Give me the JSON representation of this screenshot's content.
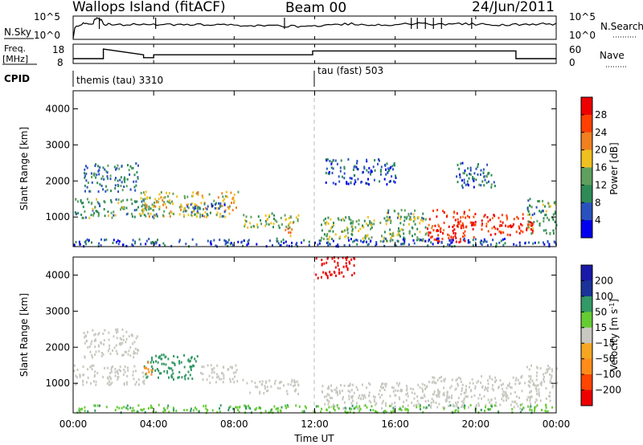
{
  "header": {
    "site": "Wallops Island (fitACF)",
    "beam": "Beam 00",
    "date": "24/Jun/2011"
  },
  "sky_panel": {
    "label": "N.Sky",
    "right_label": "N.Search",
    "y_ticks_left": [
      "10^5",
      "10^0"
    ],
    "y_ticks_right": [
      "10^5",
      "10^0"
    ]
  },
  "freq_panel": {
    "label_top": "Freq.",
    "label_bottom": "[MHz]",
    "y_ticks_left": [
      "18",
      "8"
    ],
    "right_label": "Nave",
    "y_ticks_right": [
      "60",
      "0"
    ]
  },
  "cpid_panel": {
    "label": "CPID",
    "programs": [
      {
        "name": "themis (tau)",
        "id": "3310",
        "start_hour": 0
      },
      {
        "name": "tau (fast)",
        "id": "503",
        "start_hour": 12
      }
    ]
  },
  "x_axis": {
    "label": "Time UT",
    "tick_labels": [
      "00:00",
      "04:00",
      "08:00",
      "12:00",
      "16:00",
      "20:00",
      "00:00"
    ],
    "tick_hours": [
      0,
      4,
      8,
      12,
      16,
      20,
      24
    ],
    "range_hours": [
      0,
      24
    ]
  },
  "colors": {
    "power_scale": [
      "#0000ee",
      "#2a52be",
      "#2e8b57",
      "#5fa05f",
      "#f0c020",
      "#f08020",
      "#ff4000",
      "#ee0000"
    ],
    "velocity_scale": [
      "#ee0000",
      "#ff4500",
      "#ff8c1a",
      "#f5a623",
      "#c8c8c0",
      "#66cc33",
      "#339966",
      "#1a3399",
      "#1a1aaa"
    ],
    "ground_scatter": "#c8c8c0",
    "line": "#000000"
  },
  "chart_data": [
    {
      "type": "line",
      "title": "N.Sky",
      "ylabel": "N.Sky",
      "y_scale": "log",
      "ylim": [
        1,
        100000
      ],
      "x_hours": [
        0,
        0.5,
        1,
        1.2,
        1.5,
        2,
        3,
        4,
        5,
        6,
        7,
        8,
        9,
        10,
        11,
        12,
        13,
        14,
        15,
        16,
        17,
        18,
        19,
        20,
        21,
        22,
        23,
        24
      ],
      "values": [
        0,
        2000,
        2600,
        30000,
        1800,
        1500,
        1500,
        1300,
        1500,
        1600,
        1400,
        900,
        800,
        700,
        600,
        800,
        1500,
        2000,
        1400,
        1700,
        2500,
        1600,
        2000,
        1800,
        1500,
        1400,
        2000,
        1800
      ],
      "spikes_hours": [
        1.3,
        4.1,
        10.5,
        16.8,
        17.1,
        17.5,
        17.9,
        18.3,
        19.8
      ]
    },
    {
      "type": "line",
      "title": "Freq.",
      "ylabel": "Freq. [MHz]",
      "ylim": [
        8,
        18
      ],
      "series": [
        {
          "name": "Freq.",
          "x_hours": [
            0,
            1.5,
            1.5,
            3.5,
            3.5,
            4.0,
            4.0,
            11.9,
            11.9,
            22.0,
            22.0,
            24
          ],
          "values": [
            10.5,
            10.5,
            15.5,
            12.5,
            11.0,
            11.0,
            12.5,
            12.5,
            14.5,
            14.5,
            10.5,
            10.5
          ]
        },
        {
          "name": "Nave",
          "x_hours": [
            0,
            24
          ],
          "values": [
            8,
            8
          ]
        }
      ]
    },
    {
      "type": "heatmap",
      "title": "Power",
      "ylabel": "Slant Range [km]",
      "xlabel": "",
      "ylim": [
        180,
        4500
      ],
      "y_ticks": [
        1000,
        2000,
        3000,
        4000
      ],
      "colorbar": {
        "label": "Power [dB]",
        "ticks": [
          4,
          8,
          12,
          16,
          20,
          24,
          28
        ],
        "range": [
          0,
          32
        ]
      },
      "blobs": [
        {
          "t0": 0.0,
          "t1": 4.2,
          "r0": 950,
          "r1": 1500,
          "value": 12
        },
        {
          "t0": 0.5,
          "t1": 3.2,
          "r0": 1700,
          "r1": 2500,
          "value": 9
        },
        {
          "t0": 3.3,
          "t1": 8.2,
          "r0": 1000,
          "r1": 1700,
          "value": 18
        },
        {
          "t0": 5.5,
          "t1": 7.5,
          "r0": 1000,
          "r1": 1400,
          "value": 8
        },
        {
          "t0": 8.4,
          "t1": 11.2,
          "r0": 700,
          "r1": 1100,
          "value": 14
        },
        {
          "t0": 10.5,
          "t1": 11.0,
          "r0": 400,
          "r1": 900,
          "value": 20
        },
        {
          "t0": 12.3,
          "t1": 17.6,
          "r0": 300,
          "r1": 1000,
          "value": 14
        },
        {
          "t0": 15.5,
          "t1": 17.4,
          "r0": 900,
          "r1": 1200,
          "value": 12
        },
        {
          "t0": 17.5,
          "t1": 20.0,
          "r0": 300,
          "r1": 1200,
          "value": 28
        },
        {
          "t0": 20.2,
          "t1": 22.8,
          "r0": 500,
          "r1": 1100,
          "value": 28
        },
        {
          "t0": 22.5,
          "t1": 24.0,
          "r0": 500,
          "r1": 1500,
          "value": 12
        },
        {
          "t0": 19.0,
          "t1": 21.0,
          "r0": 1800,
          "r1": 2500,
          "value": 8
        },
        {
          "t0": 12.5,
          "t1": 16.0,
          "r0": 1900,
          "r1": 2600,
          "value": 6
        },
        {
          "t0": 0.0,
          "t1": 24.0,
          "r0": 180,
          "r1": 400,
          "value": 6
        }
      ]
    },
    {
      "type": "heatmap",
      "title": "Velocity",
      "ylabel": "Slant Range [km]",
      "xlabel": "Time UT",
      "ylim": [
        180,
        4500
      ],
      "y_ticks": [
        1000,
        2000,
        3000,
        4000
      ],
      "colorbar": {
        "label": "Velocity [m s^-1]",
        "ticks": [
          200,
          100,
          50,
          15,
          -15,
          -50,
          -100,
          -200
        ],
        "range": [
          -250,
          250
        ]
      },
      "blobs": [
        {
          "t0": 0.0,
          "t1": 3.5,
          "r0": 950,
          "r1": 1500,
          "value": 0
        },
        {
          "t0": 0.5,
          "t1": 3.2,
          "r0": 1700,
          "r1": 2500,
          "value": 0
        },
        {
          "t0": 3.5,
          "t1": 6.2,
          "r0": 1100,
          "r1": 1800,
          "value": 40
        },
        {
          "t0": 6.2,
          "t1": 8.2,
          "r0": 1000,
          "r1": 1500,
          "value": 0
        },
        {
          "t0": 3.4,
          "t1": 3.9,
          "r0": 1200,
          "r1": 1600,
          "value": -50
        },
        {
          "t0": 8.4,
          "t1": 11.2,
          "r0": 700,
          "r1": 1100,
          "value": 0
        },
        {
          "t0": 12.3,
          "t1": 17.5,
          "r0": 300,
          "r1": 1000,
          "value": 0
        },
        {
          "t0": 17.5,
          "t1": 23.0,
          "r0": 300,
          "r1": 1200,
          "value": 0
        },
        {
          "t0": 22.5,
          "t1": 24.0,
          "r0": 500,
          "r1": 1500,
          "value": 0
        },
        {
          "t0": 0.0,
          "t1": 24.0,
          "r0": 180,
          "r1": 400,
          "value": 30
        },
        {
          "t0": 12.0,
          "t1": 14.0,
          "r0": 3900,
          "r1": 4500,
          "value": -200
        }
      ]
    }
  ]
}
